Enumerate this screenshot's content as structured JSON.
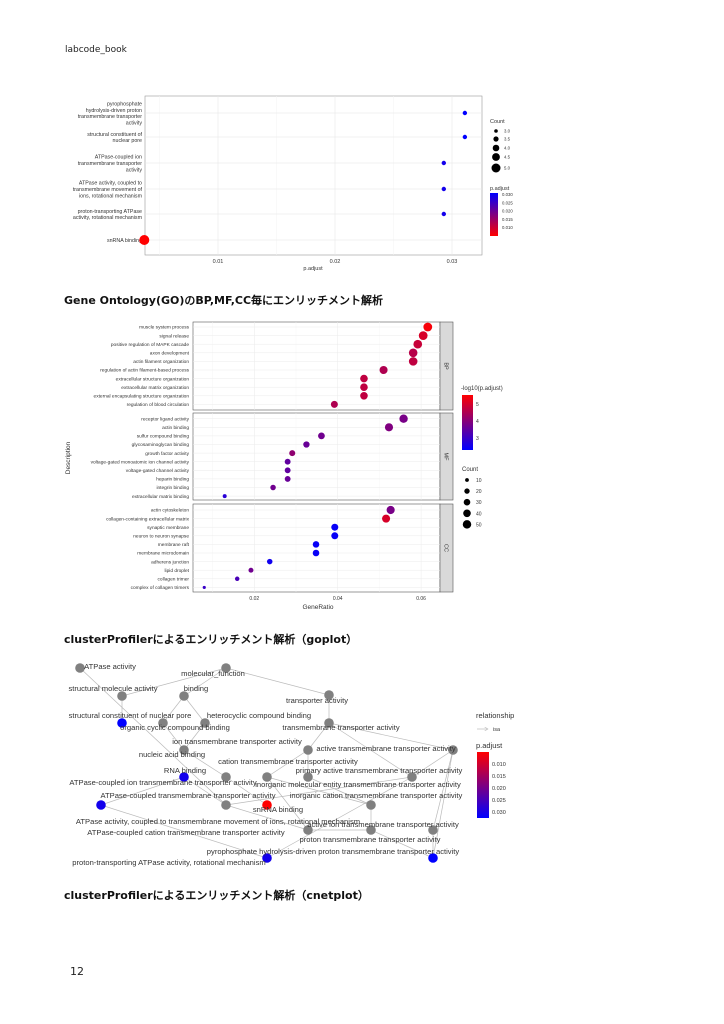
{
  "header": "labcode_book",
  "page_number": "12",
  "headings": [
    "Gene Ontology(GO)のBP,MF,CC毎にエンリッチメント解析",
    "clusterProfilerによるエンリッチメント解析（goplot）",
    "clusterProfilerによるエンリッチメント解析（cnetplot）"
  ],
  "chart_data": [
    {
      "type": "scatter",
      "xlabel": "p.adjust",
      "xticks": [
        "0.01",
        "0.02",
        "0.03"
      ],
      "xtick_values": [
        0.01,
        0.02,
        0.03
      ],
      "grid": true,
      "categories": [
        [
          "pyrophosphate",
          "hydrolysis-driven proton",
          "transmembrane transporter",
          "activity"
        ],
        [
          "structural constituent of",
          "nuclear pore"
        ],
        [
          "ATPase-coupled ion",
          "transmembrane transporter",
          "activity"
        ],
        [
          "ATPase activity, coupled to",
          "transmembrane movement of",
          "ions, rotational mechanism"
        ],
        [
          "proton-transporting ATPase",
          "activity, rotational mechanism"
        ],
        [
          "snRNA binding"
        ]
      ],
      "p_adjust": [
        0.0311,
        0.0311,
        0.0293,
        0.0293,
        0.0293,
        0.0037
      ],
      "count": [
        3,
        3,
        3,
        3,
        3,
        5
      ],
      "legend_count": {
        "title": "Count",
        "labels": [
          "3.0",
          "3.5",
          "4.0",
          "4.5",
          "5.0"
        ],
        "values": [
          3,
          3.5,
          4,
          4.5,
          5
        ]
      },
      "legend_color": {
        "title": "p.adjust",
        "labels": [
          "0.030",
          "0.025",
          "0.020",
          "0.015",
          "0.010"
        ],
        "low_color": "#ff0000",
        "high_color": "#0000ff"
      },
      "legend_placement": "right"
    },
    {
      "type": "scatter",
      "xlabel": "GeneRatio",
      "ylabel": "Description",
      "xticks": [
        "0.02",
        "0.04",
        "0.06"
      ],
      "xtick_values": [
        0.02,
        0.04,
        0.06
      ],
      "grid": true,
      "facets": [
        {
          "name": "BP",
          "terms": [
            "muscle system process",
            "signal release",
            "positive regulation of MAPK cascade",
            "axon development",
            "actin filament organization",
            "regulation of actin filament-based process",
            "extracellular structure organization",
            "extracellular matrix organization",
            "external encapsulating structure organization",
            "regulation of blood circulation"
          ],
          "gene_ratio": [
            0.0616,
            0.0605,
            0.0592,
            0.0581,
            0.0581,
            0.051,
            0.0463,
            0.0463,
            0.0463,
            0.0392
          ],
          "neg_log10_padj": [
            5.4,
            5.0,
            4.8,
            4.6,
            4.7,
            4.5,
            4.7,
            4.7,
            4.7,
            4.5
          ],
          "count": [
            54,
            53,
            52,
            51,
            51,
            45,
            40,
            40,
            40,
            34
          ]
        },
        {
          "name": "MF",
          "terms": [
            "receptor ligand activity",
            "actin binding",
            "sulfur compound binding",
            "glycosaminoglycan binding",
            "growth factor activity",
            "voltage-gated monoatomic ion channel activity",
            "voltage-gated channel activity",
            "heparin binding",
            "integrin binding",
            "extracellular matrix binding"
          ],
          "gene_ratio": [
            0.0558,
            0.0523,
            0.0361,
            0.0325,
            0.0291,
            0.028,
            0.028,
            0.028,
            0.0245,
            0.0129
          ],
          "neg_log10_padj": [
            3.8,
            3.9,
            3.7,
            3.6,
            4.1,
            3.5,
            3.5,
            3.6,
            3.7,
            2.8
          ],
          "count": [
            49,
            46,
            32,
            28,
            25,
            24,
            24,
            24,
            21,
            11
          ]
        },
        {
          "name": "CC",
          "terms": [
            "actin cytoskeleton",
            "collagen-containing extracellular matrix",
            "synaptic membrane",
            "neuron to neuron synapse",
            "membrane raft",
            "membrane microdomain",
            "adherens junction",
            "lipid droplet",
            "collagen trimer",
            "complex of collagen trimers"
          ],
          "gene_ratio": [
            0.0527,
            0.0516,
            0.0393,
            0.0393,
            0.0348,
            0.0348,
            0.0237,
            0.0192,
            0.0159,
            0.008
          ],
          "neg_log10_padj": [
            3.8,
            5.0,
            2.4,
            2.4,
            2.4,
            2.4,
            2.5,
            3.7,
            3.2,
            3.0
          ],
          "count": [
            46,
            45,
            34,
            34,
            30,
            30,
            21,
            17,
            14,
            7
          ]
        }
      ],
      "legend_color": {
        "title": "-log10(p.adjust)",
        "labels": [
          "5",
          "4",
          "3"
        ],
        "low_color": "#0000ff",
        "high_color": "#ff0000"
      },
      "legend_count": {
        "title": "Count",
        "labels": [
          "10",
          "20",
          "30",
          "40",
          "50"
        ],
        "values": [
          10,
          20,
          30,
          40,
          50
        ]
      },
      "legend_placement": "right"
    },
    {
      "type": "network",
      "nodes": [
        {
          "label": "ATPase activity",
          "p_adjust": null
        },
        {
          "label": "molecular_function",
          "p_adjust": null
        },
        {
          "label": "structural molecule activity",
          "p_adjust": null
        },
        {
          "label": "binding",
          "p_adjust": null
        },
        {
          "label": "transporter activity",
          "p_adjust": null
        },
        {
          "label": "structural constituent of nuclear pore",
          "p_adjust": 0.0311
        },
        {
          "label": "heterocyclic compound binding",
          "p_adjust": null
        },
        {
          "label": "organic cyclic compound binding",
          "p_adjust": null
        },
        {
          "label": "transmembrane transporter activity",
          "p_adjust": null
        },
        {
          "label": "ion transmembrane transporter activity",
          "p_adjust": null
        },
        {
          "label": "active transmembrane transporter activity",
          "p_adjust": null
        },
        {
          "label": "nucleic acid binding",
          "p_adjust": null
        },
        {
          "label": "cation transmembrane transporter activity",
          "p_adjust": null
        },
        {
          "label": "RNA binding",
          "p_adjust": null
        },
        {
          "label": "primary active transmembrane transporter activity",
          "p_adjust": null
        },
        {
          "label": "ATPase-coupled ion transmembrane transporter activity",
          "p_adjust": 0.0293
        },
        {
          "label": "inorganic molecular entity transmembrane transporter activity",
          "p_adjust": null
        },
        {
          "label": "ATPase-coupled transmembrane transporter activity",
          "p_adjust": null
        },
        {
          "label": "inorganic cation transmembrane transporter activity",
          "p_adjust": null
        },
        {
          "label": "snRNA binding",
          "p_adjust": 0.0037
        },
        {
          "label": "ATPase activity, coupled to transmembrane movement of ions, rotational mechanism",
          "p_adjust": 0.0293
        },
        {
          "label": "active ion transmembrane transporter activity",
          "p_adjust": null
        },
        {
          "label": "ATPase-coupled cation transmembrane transporter activity",
          "p_adjust": null
        },
        {
          "label": "proton transmembrane transporter activity",
          "p_adjust": null
        },
        {
          "label": "pyrophosphate hydrolysis-driven proton transmembrane transporter activity",
          "p_adjust": 0.0311
        },
        {
          "label": "proton-transporting ATPase activity, rotational mechanism",
          "p_adjust": 0.0293
        }
      ],
      "edges": [
        [
          1,
          2
        ],
        [
          1,
          3
        ],
        [
          1,
          4
        ],
        [
          2,
          5
        ],
        [
          3,
          7
        ],
        [
          3,
          6
        ],
        [
          4,
          8
        ],
        [
          7,
          11
        ],
        [
          6,
          11
        ],
        [
          11,
          13
        ],
        [
          8,
          9
        ],
        [
          8,
          10
        ],
        [
          8,
          14
        ],
        [
          9,
          12
        ],
        [
          9,
          16
        ],
        [
          10,
          14
        ],
        [
          10,
          21
        ],
        [
          13,
          19
        ],
        [
          12,
          18
        ],
        [
          14,
          17
        ],
        [
          16,
          18
        ],
        [
          17,
          15
        ],
        [
          17,
          22
        ],
        [
          18,
          23
        ],
        [
          21,
          24
        ],
        [
          22,
          23
        ],
        [
          23,
          24
        ],
        [
          15,
          20
        ],
        [
          20,
          25
        ],
        [
          0,
          17
        ],
        [
          12,
          22
        ],
        [
          14,
          25
        ],
        [
          10,
          24
        ]
      ],
      "legend_edge": {
        "title": "relationship",
        "labels": [
          "isa"
        ]
      },
      "legend_color": {
        "title": "p.adjust",
        "labels": [
          "0.010",
          "0.015",
          "0.020",
          "0.025",
          "0.030"
        ],
        "low_color": "#ff0000",
        "high_color": "#0000ff"
      },
      "legend_placement": "right"
    }
  ]
}
